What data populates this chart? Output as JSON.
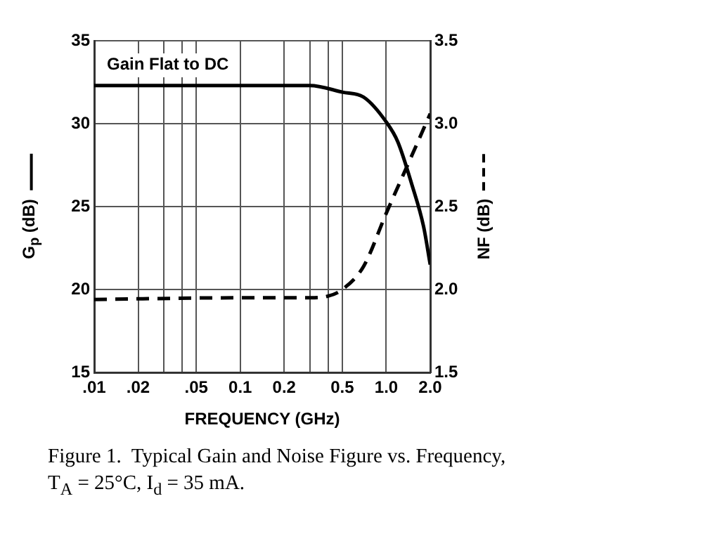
{
  "chart_data": {
    "type": "line",
    "annotations": [
      "Gain Flat to DC",
      "Figure 1.  Typical Gain and Noise Figure vs. Frequency, T$_{A}$ = 25°C, I$_{d}$ = 35 mA."
    ],
    "xlabel": "FREQUENCY (GHz)",
    "ylabel": "G$_{p}$ (dB)",
    "y2label": "NF (dB)",
    "log": "x",
    "grid": true,
    "legend": false,
    "marker": "none",
    "xlim": [
      0.01,
      2.0
    ],
    "xticks": [
      {
        "value": 0.01,
        "label": ".01"
      },
      {
        "value": 0.02,
        "label": ".02"
      },
      {
        "value": 0.03,
        "label": null
      },
      {
        "value": 0.04,
        "label": null
      },
      {
        "value": 0.05,
        "label": ".05"
      },
      0.1,
      0.2,
      {
        "value": 0.3,
        "label": null
      },
      {
        "value": 0.4,
        "label": null
      },
      0.5,
      {
        "value": 1.0,
        "label": "1.0"
      },
      {
        "value": 2.0,
        "label": "2.0"
      }
    ],
    "ylim": [
      15,
      35
    ],
    "yticks": [
      15,
      20,
      25,
      30,
      35
    ],
    "y2lim": [
      1.5,
      3.5
    ],
    "y2ticks": [
      1.5,
      {
        "value": 2.0,
        "label": "2.0"
      },
      2.5,
      {
        "value": 3.0,
        "label": "3.0"
      },
      3.5
    ],
    "series": [
      {
        "color": "#000000",
        "line_style": "solid",
        "x": [
          0.01,
          0.1,
          0.3,
          0.5,
          0.7,
          1.0,
          1.2,
          1.5,
          1.8,
          2.0
        ],
        "values": [
          32.3,
          32.3,
          32.3,
          31.9,
          31.6,
          30.1,
          28.9,
          26.3,
          23.8,
          21.5
        ]
      },
      {
        "color": "#000000",
        "line_style": "dashed",
        "axis": "y2",
        "x": [
          0.01,
          0.1,
          0.3,
          0.4,
          0.5,
          0.7,
          1.0,
          1.5,
          2.0
        ],
        "values": [
          1.94,
          1.95,
          1.95,
          1.96,
          2.0,
          2.14,
          2.46,
          2.81,
          3.06
        ]
      }
    ]
  }
}
